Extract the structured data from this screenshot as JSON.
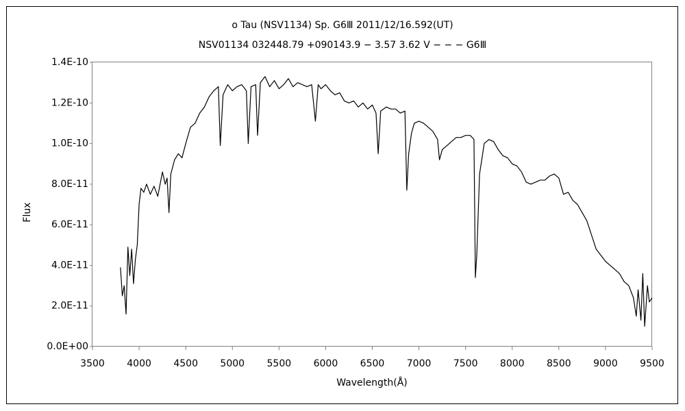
{
  "chart_data": {
    "type": "line",
    "title": "ο Tau (NSV1134)    Sp. G6Ⅲ    2011/12/16.592(UT)",
    "subtitle": "NSV01134 032448.79 +090143.9 − 3.57 3.62 V − − − G6Ⅲ",
    "xlabel": "Wavelength(Å)",
    "ylabel": "Flux",
    "xlim": [
      3500,
      9500
    ],
    "xticks": [
      3500,
      4000,
      4500,
      5000,
      5500,
      6000,
      6500,
      7000,
      7500,
      8000,
      8500,
      9000,
      9500
    ],
    "ylim": [
      0,
      1.4e-10
    ],
    "yticks": [
      {
        "value": 0,
        "label": "0.0E+00"
      },
      {
        "value": 2e-11,
        "label": "2.0E-11"
      },
      {
        "value": 4e-11,
        "label": "4.0E-11"
      },
      {
        "value": 6e-11,
        "label": "6.0E-11"
      },
      {
        "value": 8e-11,
        "label": "8.0E-11"
      },
      {
        "value": 1e-10,
        "label": "1.0E-10"
      },
      {
        "value": 1.2e-10,
        "label": "1.2E-10"
      },
      {
        "value": 1.4e-10,
        "label": "1.4E-10"
      }
    ],
    "grid": false,
    "x": [
      3800,
      3820,
      3840,
      3860,
      3880,
      3900,
      3920,
      3940,
      3960,
      3980,
      4000,
      4020,
      4050,
      4080,
      4120,
      4160,
      4200,
      4250,
      4280,
      4300,
      4320,
      4340,
      4380,
      4420,
      4460,
      4500,
      4550,
      4600,
      4650,
      4700,
      4750,
      4800,
      4850,
      4870,
      4900,
      4950,
      5000,
      5050,
      5100,
      5150,
      5170,
      5200,
      5250,
      5270,
      5300,
      5350,
      5400,
      5450,
      5500,
      5550,
      5600,
      5650,
      5700,
      5750,
      5800,
      5850,
      5890,
      5920,
      5950,
      6000,
      6050,
      6100,
      6150,
      6200,
      6250,
      6300,
      6350,
      6400,
      6450,
      6500,
      6540,
      6563,
      6590,
      6650,
      6700,
      6750,
      6800,
      6850,
      6870,
      6890,
      6920,
      6950,
      7000,
      7050,
      7100,
      7150,
      7200,
      7220,
      7250,
      7300,
      7350,
      7400,
      7450,
      7500,
      7550,
      7590,
      7605,
      7620,
      7650,
      7700,
      7750,
      7800,
      7850,
      7900,
      7950,
      8000,
      8050,
      8100,
      8150,
      8200,
      8250,
      8300,
      8350,
      8400,
      8450,
      8500,
      8550,
      8600,
      8650,
      8700,
      8750,
      8800,
      8850,
      8900,
      8950,
      9000,
      9050,
      9100,
      9150,
      9200,
      9250,
      9300,
      9330,
      9350,
      9380,
      9400,
      9420,
      9450,
      9470,
      9500
    ],
    "series": [
      {
        "color": "#000000",
        "values": [
          3.9e-11,
          2.5e-11,
          3e-11,
          1.6e-11,
          4.9e-11,
          3.5e-11,
          4.8e-11,
          3.1e-11,
          4.3e-11,
          5e-11,
          7e-11,
          7.8e-11,
          7.6e-11,
          8e-11,
          7.5e-11,
          7.9e-11,
          7.4e-11,
          8.6e-11,
          8e-11,
          8.3e-11,
          6.6e-11,
          8.5e-11,
          9.2e-11,
          9.5e-11,
          9.3e-11,
          1e-10,
          1.08e-10,
          1.1e-10,
          1.15e-10,
          1.18e-10,
          1.23e-10,
          1.26e-10,
          1.28e-10,
          9.9e-11,
          1.24e-10,
          1.29e-10,
          1.26e-10,
          1.28e-10,
          1.29e-10,
          1.26e-10,
          1e-10,
          1.28e-10,
          1.29e-10,
          1.04e-10,
          1.3e-10,
          1.33e-10,
          1.28e-10,
          1.31e-10,
          1.27e-10,
          1.29e-10,
          1.32e-10,
          1.28e-10,
          1.3e-10,
          1.29e-10,
          1.28e-10,
          1.29e-10,
          1.11e-10,
          1.29e-10,
          1.27e-10,
          1.29e-10,
          1.26e-10,
          1.24e-10,
          1.25e-10,
          1.21e-10,
          1.2e-10,
          1.21e-10,
          1.18e-10,
          1.2e-10,
          1.17e-10,
          1.19e-10,
          1.15e-10,
          9.5e-11,
          1.16e-10,
          1.18e-10,
          1.17e-10,
          1.17e-10,
          1.15e-10,
          1.16e-10,
          7.7e-11,
          9.5e-11,
          1.05e-10,
          1.1e-10,
          1.11e-10,
          1.1e-10,
          1.08e-10,
          1.06e-10,
          1.02e-10,
          9.2e-11,
          9.7e-11,
          9.9e-11,
          1.01e-10,
          1.03e-10,
          1.03e-10,
          1.04e-10,
          1.04e-10,
          1.02e-10,
          3.4e-11,
          4.5e-11,
          8.5e-11,
          1e-10,
          1.02e-10,
          1.01e-10,
          9.7e-11,
          9.4e-11,
          9.3e-11,
          9e-11,
          8.9e-11,
          8.6e-11,
          8.1e-11,
          8e-11,
          8.1e-11,
          8.2e-11,
          8.2e-11,
          8.4e-11,
          8.5e-11,
          8.3e-11,
          7.5e-11,
          7.6e-11,
          7.2e-11,
          7e-11,
          6.6e-11,
          6.2e-11,
          5.5e-11,
          4.8e-11,
          4.5e-11,
          4.2e-11,
          4e-11,
          3.8e-11,
          3.6e-11,
          3.2e-11,
          3e-11,
          2.4e-11,
          1.5e-11,
          2.8e-11,
          1.3e-11,
          3.6e-11,
          1e-11,
          3e-11,
          2.2e-11,
          2.4e-11
        ]
      }
    ]
  }
}
